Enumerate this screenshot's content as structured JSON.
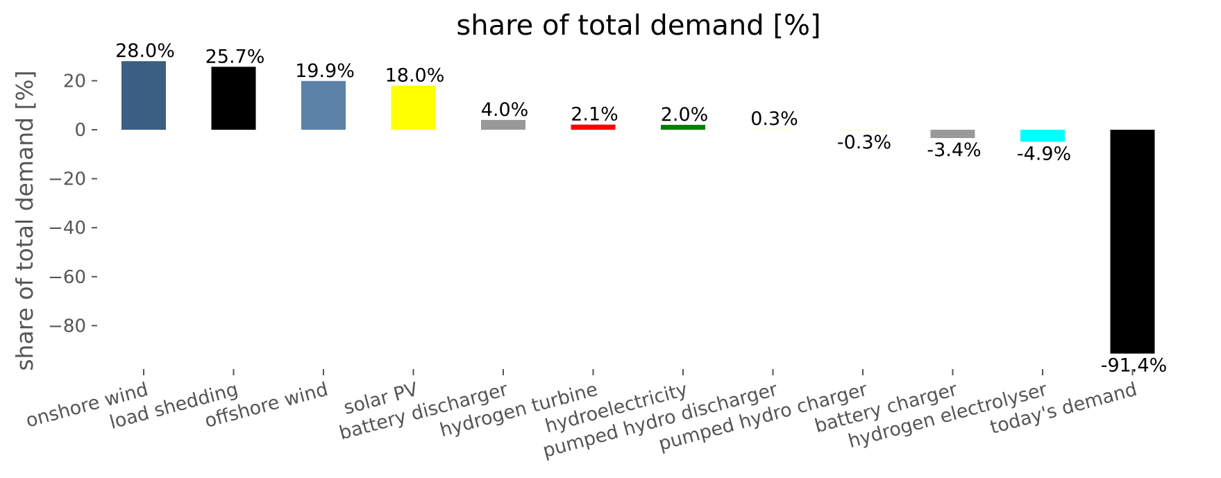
{
  "chart_data": {
    "type": "bar",
    "title": "share of total demand [%]",
    "xlabel": "",
    "ylabel": "share of total demand [%]",
    "ylim": [
      -99,
      31
    ],
    "yticks": [
      20,
      0,
      -20,
      -40,
      -60,
      -80
    ],
    "ytick_labels": [
      "20",
      "0",
      "−20",
      "−40",
      "−60",
      "−80"
    ],
    "grid": false,
    "categories": [
      "onshore wind",
      "load shedding",
      "offshore wind",
      "solar PV",
      "battery discharger",
      "hydrogen turbine",
      "hydroelectricity",
      "pumped hydro discharger",
      "pumped hydro charger",
      "battery charger",
      "hydrogen electrolyser",
      "today's demand"
    ],
    "values": [
      28.0,
      25.7,
      19.9,
      18.0,
      4.0,
      2.1,
      2.0,
      0.3,
      -0.3,
      -3.4,
      -4.9,
      -91.4
    ],
    "value_labels": [
      "28.0%",
      "25.7%",
      "19.9%",
      "18.0%",
      "4.0%",
      "2.1%",
      "2.0%",
      "0.3%",
      "-0.3%",
      "-3.4%",
      "-4.9%",
      "-91.4%"
    ],
    "colors": [
      "#3b5f82",
      "#000000",
      "#5b82a6",
      "#ffff00",
      "#999999",
      "#ff0000",
      "#008000",
      "#ffffcc",
      "#ffffcc",
      "#999999",
      "#00ffff",
      "#000000"
    ]
  }
}
